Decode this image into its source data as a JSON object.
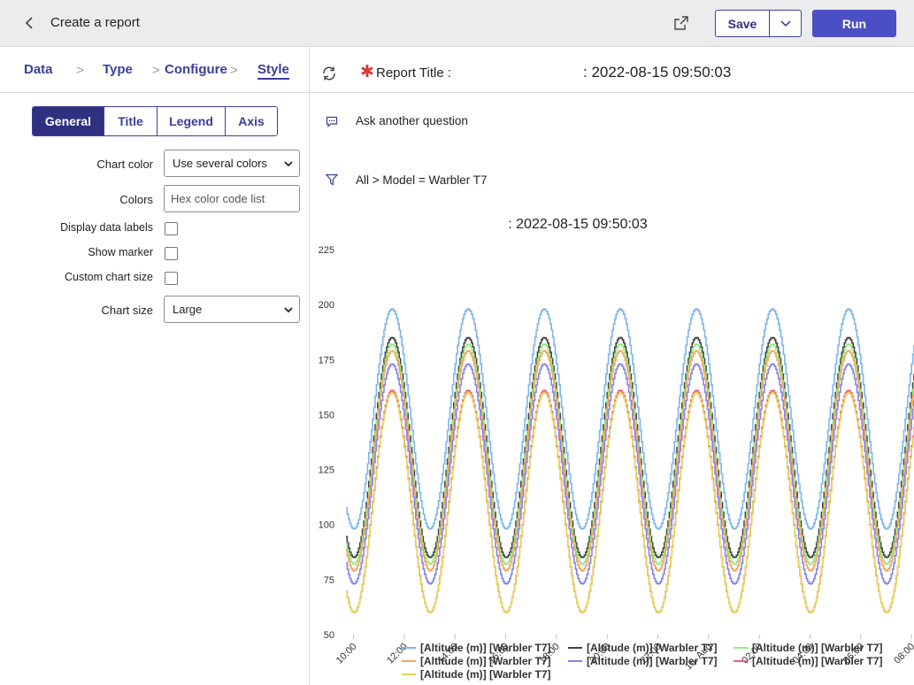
{
  "header": {
    "page_title": "Create a report",
    "save_label": "Save",
    "run_label": "Run"
  },
  "steps": [
    "Data",
    "Type",
    "Configure",
    "Style"
  ],
  "style_tabs": [
    "General",
    "Title",
    "Legend",
    "Axis"
  ],
  "form": {
    "chart_color_label": "Chart color",
    "chart_color_value": "Use several colors",
    "colors_label": "Colors",
    "colors_placeholder": "Hex color code list",
    "display_data_labels_label": "Display data labels",
    "show_marker_label": "Show marker",
    "custom_chart_size_label": "Custom chart size",
    "chart_size_label": "Chart size",
    "chart_size_value": "Large"
  },
  "report": {
    "title_label": "Report Title :",
    "title_value": ": 2022-08-15 09:50:03",
    "ask_label": "Ask another question",
    "filter_text": "All  >  Model = Warbler T7"
  },
  "chart_data": {
    "type": "line",
    "title": ": 2022-08-15 09:50:03",
    "ylim": [
      50,
      225
    ],
    "yticks": [
      50,
      75,
      100,
      125,
      150,
      175,
      200,
      225
    ],
    "xticks": [
      "10:00",
      "12:00",
      "14:00",
      "16:00",
      "18:00",
      "20:00",
      "22:00",
      "15. Aug",
      "02:00",
      "04:00",
      "06:00",
      "08:00"
    ],
    "xlim_hours": [
      9.7,
      32.1
    ],
    "period_hours": 3,
    "peak_hour": 11.5,
    "legend_position": "bottom",
    "series": [
      {
        "name": "[Altitude (m)] [Warbler T7]",
        "color": "#7cb5ec",
        "min": 98,
        "max": 198
      },
      {
        "name": "[Altitude (m)] [Warbler T7]",
        "color": "#434348",
        "min": 85,
        "max": 185
      },
      {
        "name": "[Altitude (m)] [Warbler T7]",
        "color": "#90ed7d",
        "min": 82,
        "max": 182
      },
      {
        "name": "[Altitude (m)] [Warbler T7]",
        "color": "#f7a35c",
        "min": 79,
        "max": 179
      },
      {
        "name": "[Altitude (m)] [Warbler T7]",
        "color": "#8085e9",
        "min": 73,
        "max": 173
      },
      {
        "name": "[Altitude (m)] [Warbler T7]",
        "color": "#f15c80",
        "min": 60,
        "max": 161
      },
      {
        "name": "[Altitude (m)] [Warbler T7]",
        "color": "#e4d354",
        "min": 60,
        "max": 160
      }
    ]
  }
}
